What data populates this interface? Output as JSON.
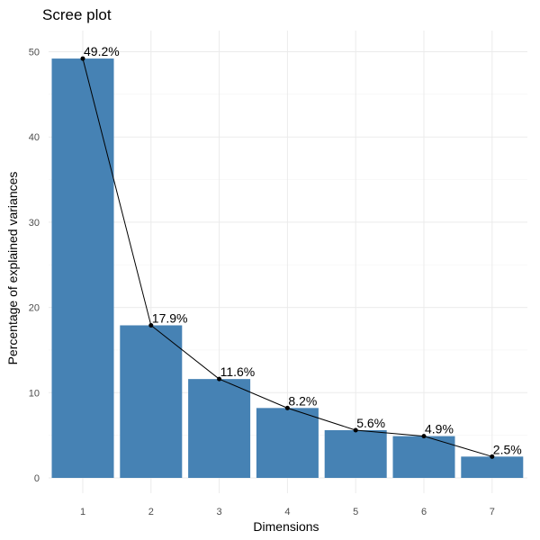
{
  "chart_data": {
    "type": "bar",
    "title": "Scree plot",
    "xlabel": "Dimensions",
    "ylabel": "Percentage of explained variances",
    "categories": [
      "1",
      "2",
      "3",
      "4",
      "5",
      "6",
      "7"
    ],
    "values": [
      49.2,
      17.9,
      11.6,
      8.2,
      5.6,
      4.9,
      2.5
    ],
    "data_labels": [
      "49.2%",
      "17.9%",
      "11.6%",
      "8.2%",
      "5.6%",
      "4.9%",
      "2.5%"
    ],
    "y_ticks": [
      0,
      10,
      20,
      30,
      40,
      50
    ],
    "ylim": [
      0,
      52
    ],
    "grid": true,
    "overlay": "line with points through bar tops",
    "colors": {
      "bar": "#4682b4",
      "line": "#000000",
      "point": "#000000"
    }
  }
}
